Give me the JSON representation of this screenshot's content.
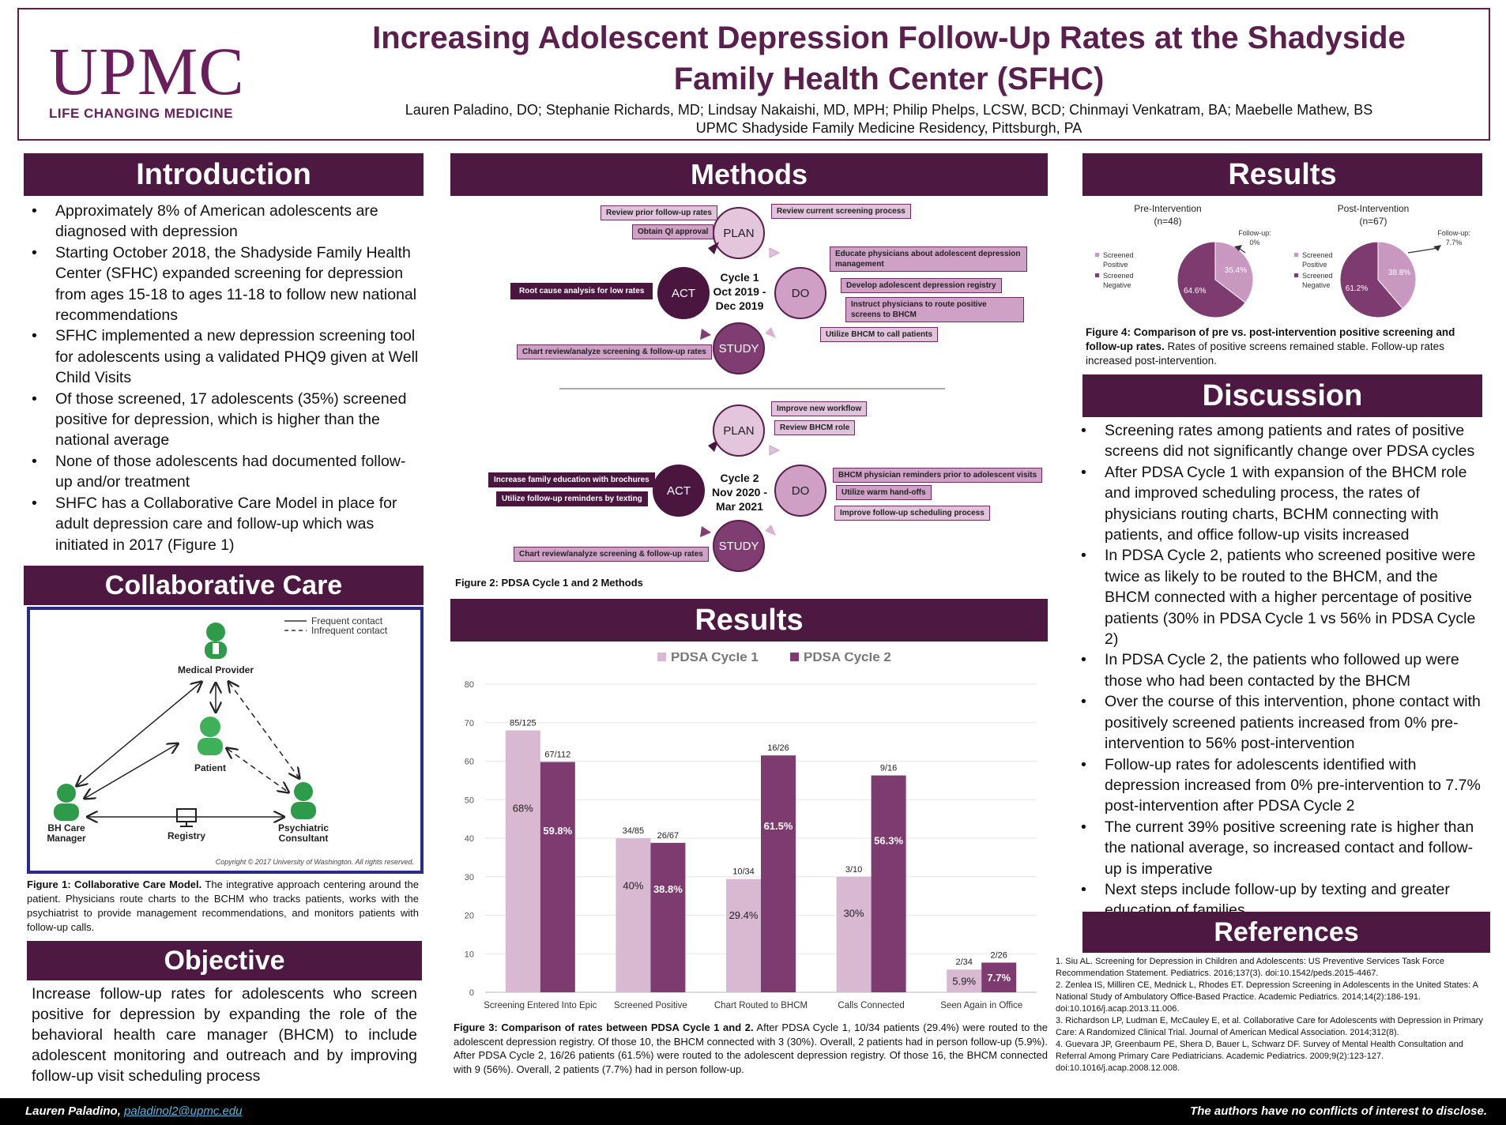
{
  "header": {
    "logo_main": "UPMC",
    "logo_sub": "LIFE CHANGING MEDICINE",
    "title": "Increasing Adolescent Depression Follow-Up Rates at the Shadyside Family Health Center (SFHC)",
    "authors": "Lauren Paladino, DO; Stephanie Richards, MD; Lindsay Nakaishi, MD, MPH; Philip Phelps, LCSW, BCD; Chinmayi Venkatram, BA; Maebelle Mathew, BS",
    "affiliation": "UPMC Shadyside Family Medicine Residency, Pittsburgh, PA"
  },
  "introduction": {
    "heading": "Introduction",
    "bullets": [
      "Approximately 8% of American adolescents are diagnosed with depression",
      "Starting October 2018, the Shadyside Family Health Center (SFHC) expanded screening for depression from ages 15-18 to ages 11-18 to follow new national recommendations",
      "SFHC implemented a new depression screening tool for adolescents using a validated PHQ9 given at Well Child Visits",
      "Of those screened, 17 adolescents (35%) screened positive for depression, which is higher than the national average",
      "None of those adolescents had documented follow-up and/or treatment",
      "SHFC has a Collaborative Care Model in place for adult depression care and follow-up which was initiated in 2017 (Figure 1)"
    ]
  },
  "collab": {
    "heading": "Collaborative Care",
    "legend_frequent": "Frequent contact",
    "legend_infrequent": "Infrequent contact",
    "medical_provider": "Medical Provider",
    "patient": "Patient",
    "bh_care_line1": "BH Care",
    "bh_care_line2": "Manager",
    "registry": "Registry",
    "psych_line1": "Psychiatric",
    "psych_line2": "Consultant",
    "copyright": "Copyright © 2017 University of Washington. All rights reserved.",
    "caption_bold": "Figure 1: Collaborative Care Model.",
    "caption_text": "The integrative approach centering around the patient. Physicians route charts to the BCHM who tracks patients, works with the psychiatrist to provide management recommendations, and monitors patients with follow-up calls."
  },
  "objective": {
    "heading": "Objective",
    "text": "Increase follow-up rates for adolescents who screen positive for depression by expanding the role of the behavioral health care manager (BHCM) to include adolescent monitoring and outreach and by improving follow-up visit scheduling process"
  },
  "methods": {
    "heading": "Methods",
    "plan": "PLAN",
    "do": "DO",
    "act": "ACT",
    "study": "STUDY",
    "cycle1": {
      "line1": "Cycle 1",
      "line2": "Oct 2019 -",
      "line3": "Dec 2019",
      "tags": {
        "review_prior": "Review prior follow-up rates",
        "obtain_qi": "Obtain QI approval",
        "review_current": "Review current screening process",
        "educate": "Educate physicians about adolescent depression management",
        "registry": "Develop adolescent depression registry",
        "instruct": "Instruct physicians to route positive screens to BHCM",
        "utilize_bhcm": "Utilize BHCM to call patients",
        "root_cause": "Root cause analysis for low rates",
        "chart_review": "Chart review/analyze screening & follow-up rates"
      }
    },
    "cycle2": {
      "line1": "Cycle 2",
      "line2": "Nov 2020 -",
      "line3": "Mar 2021",
      "tags": {
        "improve_workflow": "Improve new workflow",
        "review_bhcm": "Review BHCM role",
        "reminders": "BHCM physician reminders prior to adolescent visits",
        "warm": "Utilize warm hand-offs",
        "scheduling": "Improve follow-up scheduling process",
        "brochures": "Increase family education with brochures",
        "texting": "Utilize follow-up reminders by texting",
        "chart_review": "Chart review/analyze screening & follow-up rates"
      }
    },
    "caption": "Figure 2: PDSA Cycle 1 and 2 Methods"
  },
  "results_mid": {
    "heading": "Results",
    "caption_bold": "Figure 3: Comparison of rates between PDSA Cycle 1 and 2.",
    "caption_text": "After PDSA Cycle 1, 10/34 patients (29.4%) were routed to the adolescent depression registry. Of those 10, the BHCM connected with 3 (30%). Overall, 2 patients had in person follow-up (5.9%). After PDSA Cycle 2, 16/26 patients (61.5%) were routed to the adolescent depression registry. Of those 16, the BHCM connected with 9 (56%). Overall, 2 patients (7.7%) had in person follow-up."
  },
  "chart_data": [
    {
      "type": "bar",
      "categories": [
        "Screening Entered Into Epic",
        "Screened Positive",
        "Chart Routed to BHCM",
        "Calls Connected",
        "Seen Again in Office"
      ],
      "series": [
        {
          "name": "PDSA Cycle 1",
          "values": [
            68,
            40,
            29.4,
            30,
            5.9
          ],
          "labels": [
            "68%",
            "40%",
            "29.4%",
            "30%",
            "5.9%"
          ],
          "fractions": [
            "85/125",
            "34/85",
            "10/34",
            "3/10",
            "2/34"
          ],
          "color": "#d9b8d2"
        },
        {
          "name": "PDSA Cycle 2",
          "values": [
            59.8,
            38.8,
            61.5,
            56.3,
            7.7
          ],
          "labels": [
            "59.8%",
            "38.8%",
            "61.5%",
            "56.3%",
            "7.7%"
          ],
          "fractions": [
            "67/112",
            "26/67",
            "16/26",
            "9/16",
            "2/26"
          ],
          "color": "#7d3b70"
        }
      ],
      "yticks": [
        "0",
        "10",
        "20",
        "30",
        "40",
        "50",
        "60",
        "70",
        "80"
      ],
      "ylim": [
        0,
        80
      ],
      "grid": true,
      "legend": "top"
    },
    {
      "type": "pie",
      "title": "Pre-Intervention",
      "subtitle": "(n=48)",
      "slices": [
        {
          "label": "Screened Positive",
          "value": 35.4,
          "display": "35.4%",
          "color": "#c998c0"
        },
        {
          "label": "Screened Negative",
          "value": 64.6,
          "display": "64.6%",
          "color": "#7d3b70"
        }
      ],
      "callout": "Follow-up: 0%",
      "callout_line1": "Follow-up:",
      "callout_line2": "0%"
    },
    {
      "type": "pie",
      "title": "Post-Intervention",
      "subtitle": "(n=67)",
      "slices": [
        {
          "label": "Screened Positive",
          "value": 38.8,
          "display": "38.8%",
          "color": "#c998c0"
        },
        {
          "label": "Screened Negative",
          "value": 61.2,
          "display": "61.2%",
          "color": "#7d3b70"
        }
      ],
      "callout_line1": "Follow-up:",
      "callout_line2": "7.7%"
    }
  ],
  "results_right": {
    "heading": "Results",
    "legend_pos_1": "Screened",
    "legend_pos_2": "Positive",
    "legend_neg_1": "Screened",
    "legend_neg_2": "Negative",
    "caption_bold": "Figure 4: Comparison of pre vs. post-intervention positive screening and follow-up rates.",
    "caption_text": "Rates of positive screens remained stable. Follow-up rates increased post-intervention."
  },
  "discussion": {
    "heading": "Discussion",
    "bullets": [
      "Screening rates among patients and rates of positive screens did not significantly change over PDSA cycles",
      "After PDSA Cycle 1 with expansion of the BHCM role and improved scheduling process, the rates of physicians routing charts, BCHM connecting with patients, and office follow-up visits increased",
      "In PDSA Cycle 2, patients who screened positive were twice as likely to be routed to the BHCM, and the BHCM connected with a higher percentage of positive patients (30% in PDSA Cycle 1 vs 56% in PDSA Cycle 2)",
      "In PDSA Cycle 2, the patients who followed up were those who had been contacted by the BHCM",
      "Over the course of this intervention, phone contact with positively screened patients increased from 0% pre-intervention to 56% post-intervention",
      "Follow-up rates for adolescents identified with depression increased from 0% pre-intervention to 7.7% post-intervention after PDSA Cycle 2",
      "The current 39% positive screening rate is higher than the national average, so increased contact and follow-up is imperative",
      "Next steps include follow-up by texting and greater education of families"
    ]
  },
  "references": {
    "heading": "References",
    "items": [
      "1. Siu AL. Screening for Depression in Children and Adolescents: US Preventive Services Task Force Recommendation Statement. Pediatrics. 2016;137(3). doi:10.1542/peds.2015-4467.",
      "2. Zenlea IS, Milliren CE, Mednick L, Rhodes ET. Depression Screening in Adolescents in the United States: A National Study of Ambulatory Office-Based Practice. Academic Pediatrics. 2014;14(2):186-191. doi:10.1016/j.acap.2013.11.006.",
      "3. Richardson LP, Ludman E, McCauley E, et al. Collaborative Care for Adolescents with Depression in Primary Care: A Randomized Clinical Trial. Journal of American Medical Association. 2014;312(8).",
      "4. Guevara JP, Greenbaum PE, Shera D, Bauer L, Schwarz DF. Survey of Mental Health Consultation and Referral Among Primary Care Pediatricians. Academic Pediatrics. 2009;9(2):123-127. doi:10.1016/j.acap.2008.12.008."
    ]
  },
  "footer": {
    "name": "Lauren Paladino,",
    "email": "paladinol2@upmc.edu",
    "disclosure": "The authors have no conflicts of interest to disclose."
  },
  "colors": {
    "brand": "#5a1f4d",
    "header_bg": "#4d1842",
    "cycle1": "#d9b8d2",
    "cycle2": "#7d3b70"
  }
}
